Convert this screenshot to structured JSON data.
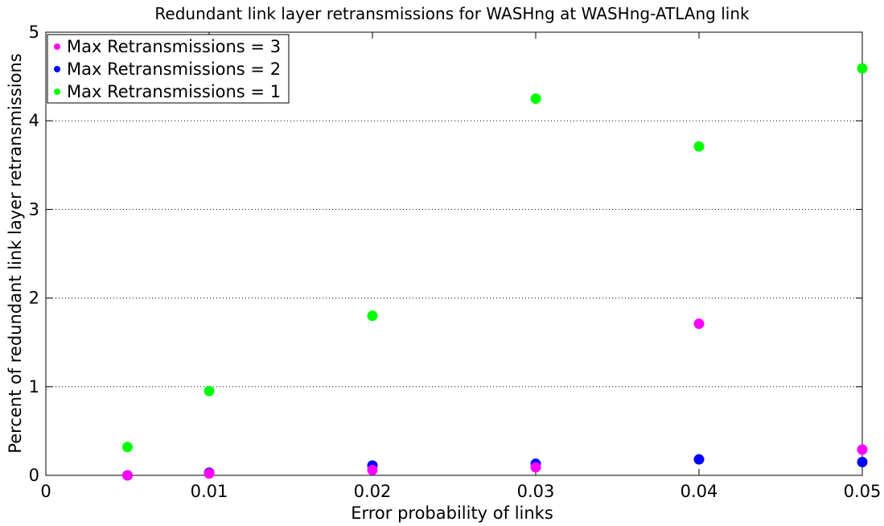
{
  "chart_data": {
    "type": "scatter",
    "title": "Redundant link layer retransmissions for WASHng at WASHng-ATLAng link",
    "xlabel": "Error probability of links",
    "ylabel": "Percent of redundant link layer retransmissions",
    "xlim": [
      0,
      0.05
    ],
    "ylim": [
      0,
      5
    ],
    "x_ticks": [
      0,
      0.01,
      0.02,
      0.03,
      0.04,
      0.05
    ],
    "x_tick_labels": [
      "0",
      "0.01",
      "0.02",
      "0.03",
      "0.04",
      "0.05"
    ],
    "y_ticks": [
      0,
      1,
      2,
      3,
      4,
      5
    ],
    "y_tick_labels": [
      "0",
      "1",
      "2",
      "3",
      "4",
      "5"
    ],
    "grid": "horizontal-dotted",
    "legend_position": "top-left",
    "x": [
      0.005,
      0.01,
      0.02,
      0.03,
      0.04,
      0.05
    ],
    "series": [
      {
        "name": "Max Retransmissions = 3",
        "color": "#ff00ff",
        "values": [
          0.0,
          0.02,
          0.06,
          0.09,
          1.71,
          0.29
        ]
      },
      {
        "name": "Max Retransmissions = 2",
        "color": "#0000ff",
        "values": [
          0.0,
          0.03,
          0.11,
          0.13,
          0.18,
          0.15
        ]
      },
      {
        "name": "Max Retransmissions = 1",
        "color": "#00ff00",
        "values": [
          0.32,
          0.95,
          1.8,
          4.25,
          3.71,
          4.59
        ]
      }
    ]
  }
}
